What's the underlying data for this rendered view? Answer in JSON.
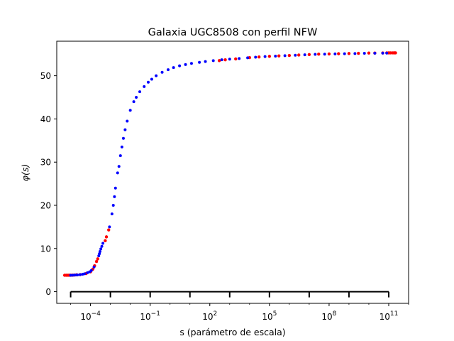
{
  "chart_data": {
    "type": "scatter",
    "title": "Galaxia UGC8508 con perfil NFW",
    "xlabel": "s (parámetro de escala)",
    "ylabel": "φ(s)",
    "x_scale": "log",
    "xlim": [
      2e-06,
      1000000000000.0
    ],
    "ylim": [
      -2.7,
      58
    ],
    "x_ticks": [
      {
        "value": 0.0001,
        "base": "10",
        "exp": "−4"
      },
      {
        "value": 0.1,
        "base": "10",
        "exp": "−1"
      },
      {
        "value": 100.0,
        "base": "10",
        "exp": "2"
      },
      {
        "value": 100000.0,
        "base": "10",
        "exp": "5"
      },
      {
        "value": 100000000.0,
        "base": "10",
        "exp": "8"
      },
      {
        "value": 100000000000.0,
        "base": "10",
        "exp": "11"
      }
    ],
    "y_ticks": [
      0,
      10,
      20,
      30,
      40,
      50
    ],
    "grid": false,
    "ruler": {
      "color": "#000000",
      "y": 0,
      "ticks": [
        1e-05,
        0.001,
        0.1,
        10.0,
        1000.0,
        100000.0,
        10000000.0,
        1000000000.0,
        100000000000.0
      ]
    },
    "series": [
      {
        "color": "#ff0000",
        "marker_radius": 2.2,
        "points": [
          [
            5e-06,
            3.8
          ],
          [
            6e-06,
            3.8
          ],
          [
            7e-06,
            3.8
          ],
          [
            8e-06,
            3.8
          ],
          [
            9e-06,
            3.8
          ],
          [
            1e-05,
            3.8
          ],
          [
            1.2e-05,
            3.82
          ],
          [
            1.5e-05,
            3.85
          ],
          [
            2e-05,
            3.9
          ],
          [
            3e-05,
            3.95
          ],
          [
            6e-05,
            4.2
          ],
          [
            0.0001,
            4.6
          ],
          [
            0.00013,
            5.2
          ],
          [
            0.00016,
            6.0
          ],
          [
            0.0002,
            7.0
          ],
          [
            0.00023,
            7.6
          ],
          [
            0.00055,
            11.8
          ],
          [
            0.00063,
            12.7
          ],
          [
            0.00082,
            14.3
          ],
          [
            300,
            53.5
          ],
          [
            600,
            53.7
          ],
          [
            2000,
            53.9
          ],
          [
            10000.0,
            54.2
          ],
          [
            30000.0,
            54.35
          ],
          [
            100000.0,
            54.5
          ],
          [
            300000.0,
            54.6
          ],
          [
            1000000.0,
            54.7
          ],
          [
            3000000.0,
            54.8
          ],
          [
            10000000.0,
            54.9
          ],
          [
            30000000.0,
            55.0
          ],
          [
            100000000.0,
            55.05
          ],
          [
            300000000.0,
            55.1
          ],
          [
            1000000000.0,
            55.15
          ],
          [
            3000000000.0,
            55.2
          ],
          [
            10000000000.0,
            55.25
          ],
          [
            20000000000.0,
            55.25
          ],
          [
            50000000000.0,
            55.28
          ],
          [
            80000000000.0,
            55.3
          ],
          [
            100000000000.0,
            55.3
          ],
          [
            120000000000.0,
            55.3
          ],
          [
            150000000000.0,
            55.3
          ],
          [
            180000000000.0,
            55.3
          ],
          [
            200000000000.0,
            55.3
          ],
          [
            220000000000.0,
            55.3
          ]
        ]
      },
      {
        "color": "#0000ff",
        "marker_radius": 2.0,
        "points": [
          [
            1e-05,
            3.8
          ],
          [
            1.3e-05,
            3.82
          ],
          [
            1.7e-05,
            3.85
          ],
          [
            2.2e-05,
            3.88
          ],
          [
            3e-05,
            3.95
          ],
          [
            4e-05,
            4.05
          ],
          [
            5e-05,
            4.15
          ],
          [
            7e-05,
            4.4
          ],
          [
            9e-05,
            4.6
          ],
          [
            0.00011,
            4.9
          ],
          [
            0.00015,
            5.7
          ],
          [
            0.00026,
            8.3
          ],
          [
            0.00028,
            8.8
          ],
          [
            0.0003,
            9.3
          ],
          [
            0.00033,
            9.9
          ],
          [
            0.00037,
            10.5
          ],
          [
            0.00042,
            11.2
          ],
          [
            0.0009,
            15.0
          ],
          [
            0.0012,
            18.0
          ],
          [
            0.0014,
            20.0
          ],
          [
            0.0016,
            22.0
          ],
          [
            0.0018,
            24.0
          ],
          [
            0.0023,
            27.5
          ],
          [
            0.0027,
            29.0
          ],
          [
            0.0032,
            31.5
          ],
          [
            0.0038,
            33.5
          ],
          [
            0.0045,
            35.5
          ],
          [
            0.0055,
            37.5
          ],
          [
            0.007,
            39.5
          ],
          [
            0.01,
            42.0
          ],
          [
            0.015,
            44.0
          ],
          [
            0.02,
            45.0
          ],
          [
            0.03,
            46.3
          ],
          [
            0.05,
            47.5
          ],
          [
            0.08,
            48.5
          ],
          [
            0.12,
            49.2
          ],
          [
            0.2,
            50.0
          ],
          [
            0.4,
            50.8
          ],
          [
            0.8,
            51.4
          ],
          [
            1.5,
            51.9
          ],
          [
            3,
            52.3
          ],
          [
            6,
            52.6
          ],
          [
            12,
            52.85
          ],
          [
            30,
            53.1
          ],
          [
            60,
            53.3
          ],
          [
            150,
            53.5
          ],
          [
            400,
            53.7
          ],
          [
            1000,
            53.85
          ],
          [
            3000,
            54.0
          ],
          [
            8000,
            54.15
          ],
          [
            20000.0,
            54.3
          ],
          [
            60000.0,
            54.45
          ],
          [
            200000.0,
            54.55
          ],
          [
            600000.0,
            54.65
          ],
          [
            2000000.0,
            54.75
          ],
          [
            6000000.0,
            54.85
          ],
          [
            20000000.0,
            54.95
          ],
          [
            60000000.0,
            55.0
          ],
          [
            200000000.0,
            55.05
          ],
          [
            600000000.0,
            55.1
          ],
          [
            2000000000.0,
            55.15
          ],
          [
            6000000000.0,
            55.2
          ],
          [
            20000000000.0,
            55.22
          ],
          [
            50000000000.0,
            55.25
          ],
          [
            80000000000.0,
            55.25
          ]
        ]
      }
    ]
  }
}
